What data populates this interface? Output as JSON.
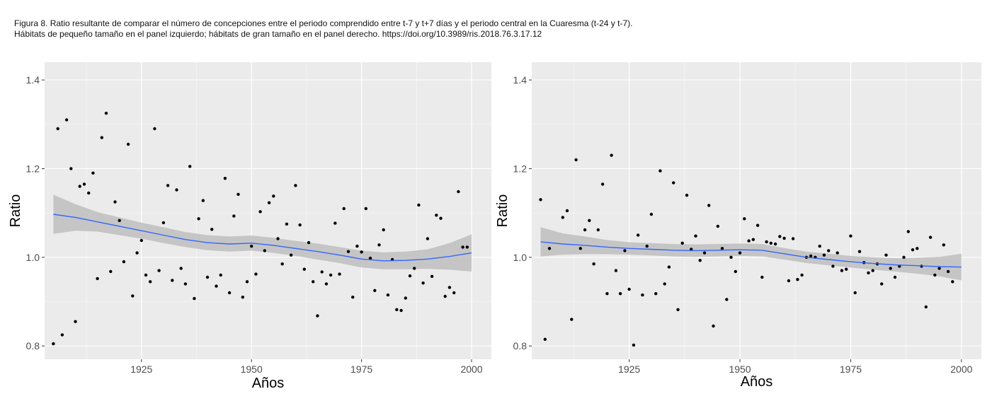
{
  "caption": {
    "line1": "Figura 8. Ratio resultante de comparar el número de concepciones entre el periodo comprendido entre t-7 y t+7 días y el periodo central en la Cuaresma (t-24 y t-7).",
    "line2": "Hábitats de pequeño tamaño en el panel izquierdo; hábitats de gran tamaño en el panel derecho. https://doi.org/10.3989/ris.2018.76.3.17.12"
  },
  "colors": {
    "panel_bg": "#ebebeb",
    "grid": "#ffffff",
    "points": "#000000",
    "smooth_line": "#3366ff",
    "confidence_band": "#bebebe"
  },
  "chart_data": [
    {
      "type": "scatter",
      "panel": "left",
      "title": "",
      "xlabel": "Años",
      "ylabel": "Ratio",
      "xlim": [
        1903,
        2004.5
      ],
      "ylim": [
        0.77,
        1.44
      ],
      "xticks": [
        1925,
        1950,
        1975,
        2000
      ],
      "yticks": [
        0.8,
        1.0,
        1.2,
        1.4
      ],
      "xtick_labels": [
        "1925",
        "1950",
        "1975",
        "2000"
      ],
      "ytick_labels": [
        "0.8",
        "1.0",
        "1.2",
        "1.4"
      ],
      "grid": true,
      "points": [
        [
          1905,
          0.805
        ],
        [
          1906,
          1.29
        ],
        [
          1907,
          0.825
        ],
        [
          1908,
          1.31
        ],
        [
          1909,
          1.2
        ],
        [
          1910,
          0.855
        ],
        [
          1911,
          1.16
        ],
        [
          1912,
          1.165
        ],
        [
          1913,
          1.145
        ],
        [
          1914,
          1.19
        ],
        [
          1915,
          0.952
        ],
        [
          1916,
          1.27
        ],
        [
          1917,
          1.325
        ],
        [
          1918,
          0.968
        ],
        [
          1919,
          1.125
        ],
        [
          1920,
          1.083
        ],
        [
          1921,
          0.99
        ],
        [
          1922,
          1.255
        ],
        [
          1923,
          0.913
        ],
        [
          1924,
          1.01
        ],
        [
          1925,
          1.038
        ],
        [
          1926,
          0.96
        ],
        [
          1927,
          0.945
        ],
        [
          1928,
          1.29
        ],
        [
          1929,
          0.97
        ],
        [
          1930,
          1.078
        ],
        [
          1931,
          1.162
        ],
        [
          1932,
          0.948
        ],
        [
          1933,
          1.152
        ],
        [
          1934,
          0.975
        ],
        [
          1935,
          0.94
        ],
        [
          1936,
          1.205
        ],
        [
          1937,
          0.907
        ],
        [
          1938,
          1.087
        ],
        [
          1939,
          1.128
        ],
        [
          1940,
          0.955
        ],
        [
          1941,
          1.063
        ],
        [
          1942,
          0.935
        ],
        [
          1943,
          0.96
        ],
        [
          1944,
          1.178
        ],
        [
          1945,
          0.92
        ],
        [
          1946,
          1.093
        ],
        [
          1947,
          1.142
        ],
        [
          1948,
          0.91
        ],
        [
          1949,
          0.945
        ],
        [
          1950,
          1.025
        ],
        [
          1951,
          0.962
        ],
        [
          1952,
          1.103
        ],
        [
          1953,
          1.015
        ],
        [
          1954,
          1.123
        ],
        [
          1955,
          1.138
        ],
        [
          1956,
          1.042
        ],
        [
          1957,
          0.985
        ],
        [
          1958,
          1.075
        ],
        [
          1959,
          1.005
        ],
        [
          1960,
          1.162
        ],
        [
          1961,
          1.073
        ],
        [
          1962,
          0.973
        ],
        [
          1963,
          1.033
        ],
        [
          1964,
          0.945
        ],
        [
          1965,
          0.868
        ],
        [
          1966,
          0.967
        ],
        [
          1967,
          0.94
        ],
        [
          1968,
          0.96
        ],
        [
          1969,
          1.077
        ],
        [
          1970,
          0.962
        ],
        [
          1971,
          1.11
        ],
        [
          1972,
          1.013
        ],
        [
          1973,
          0.91
        ],
        [
          1974,
          1.025
        ],
        [
          1975,
          1.012
        ],
        [
          1976,
          1.11
        ],
        [
          1977,
          0.998
        ],
        [
          1978,
          0.925
        ],
        [
          1979,
          1.028
        ],
        [
          1980,
          1.062
        ],
        [
          1981,
          0.915
        ],
        [
          1982,
          0.995
        ],
        [
          1983,
          0.882
        ],
        [
          1984,
          0.88
        ],
        [
          1985,
          0.908
        ],
        [
          1986,
          0.958
        ],
        [
          1987,
          0.975
        ],
        [
          1988,
          1.118
        ],
        [
          1989,
          0.942
        ],
        [
          1990,
          1.042
        ],
        [
          1991,
          0.957
        ],
        [
          1992,
          1.095
        ],
        [
          1993,
          1.088
        ],
        [
          1994,
          0.912
        ],
        [
          1995,
          0.932
        ],
        [
          1996,
          0.92
        ],
        [
          1997,
          1.148
        ],
        [
          1998,
          1.023
        ],
        [
          1999,
          1.023
        ]
      ],
      "smooth": {
        "x": [
          1905,
          1910,
          1915,
          1920,
          1925,
          1930,
          1935,
          1940,
          1945,
          1950,
          1955,
          1960,
          1965,
          1970,
          1975,
          1980,
          1985,
          1990,
          1995,
          2000
        ],
        "y": [
          1.097,
          1.09,
          1.08,
          1.07,
          1.06,
          1.05,
          1.04,
          1.033,
          1.03,
          1.032,
          1.027,
          1.02,
          1.013,
          1.005,
          0.996,
          0.992,
          0.993,
          0.996,
          1.002,
          1.01
        ],
        "lower": [
          1.053,
          1.06,
          1.058,
          1.05,
          1.042,
          1.032,
          1.023,
          1.016,
          1.013,
          1.015,
          1.01,
          1.003,
          0.995,
          0.987,
          0.977,
          0.973,
          0.973,
          0.974,
          0.972,
          0.968
        ],
        "upper": [
          1.141,
          1.12,
          1.102,
          1.09,
          1.078,
          1.068,
          1.057,
          1.05,
          1.047,
          1.049,
          1.044,
          1.037,
          1.031,
          1.023,
          1.015,
          1.011,
          1.013,
          1.018,
          1.032,
          1.052
        ]
      }
    },
    {
      "type": "scatter",
      "panel": "right",
      "title": "",
      "xlabel": "Años",
      "ylabel": "Ratio",
      "xlim": [
        1903,
        2004.5
      ],
      "ylim": [
        0.77,
        1.44
      ],
      "xticks": [
        1925,
        1950,
        1975,
        2000
      ],
      "yticks": [
        0.8,
        1.0,
        1.2,
        1.4
      ],
      "xtick_labels": [
        "1925",
        "1950",
        "1975",
        "2000"
      ],
      "ytick_labels": [
        "0.8",
        "1.0",
        "1.2",
        "1.4"
      ],
      "grid": true,
      "points": [
        [
          1905,
          1.13
        ],
        [
          1906,
          0.815
        ],
        [
          1907,
          1.02
        ],
        [
          1910,
          1.09
        ],
        [
          1911,
          1.105
        ],
        [
          1912,
          0.86
        ],
        [
          1913,
          1.22
        ],
        [
          1914,
          1.02
        ],
        [
          1915,
          1.062
        ],
        [
          1916,
          1.083
        ],
        [
          1917,
          0.985
        ],
        [
          1918,
          1.062
        ],
        [
          1919,
          1.165
        ],
        [
          1920,
          0.918
        ],
        [
          1921,
          1.23
        ],
        [
          1922,
          0.97
        ],
        [
          1923,
          0.918
        ],
        [
          1924,
          1.015
        ],
        [
          1925,
          0.928
        ],
        [
          1926,
          0.802
        ],
        [
          1927,
          1.05
        ],
        [
          1928,
          0.915
        ],
        [
          1929,
          1.025
        ],
        [
          1930,
          1.097
        ],
        [
          1931,
          0.918
        ],
        [
          1932,
          1.195
        ],
        [
          1933,
          0.94
        ],
        [
          1934,
          0.978
        ],
        [
          1935,
          1.168
        ],
        [
          1936,
          0.882
        ],
        [
          1937,
          1.032
        ],
        [
          1938,
          1.14
        ],
        [
          1939,
          1.018
        ],
        [
          1940,
          1.048
        ],
        [
          1941,
          0.993
        ],
        [
          1942,
          1.01
        ],
        [
          1943,
          1.117
        ],
        [
          1944,
          0.845
        ],
        [
          1945,
          1.07
        ],
        [
          1946,
          1.02
        ],
        [
          1947,
          0.905
        ],
        [
          1948,
          1.0
        ],
        [
          1949,
          0.968
        ],
        [
          1950,
          1.01
        ],
        [
          1951,
          1.087
        ],
        [
          1952,
          1.037
        ],
        [
          1953,
          1.04
        ],
        [
          1954,
          1.072
        ],
        [
          1955,
          0.955
        ],
        [
          1956,
          1.035
        ],
        [
          1957,
          1.032
        ],
        [
          1958,
          1.03
        ],
        [
          1959,
          1.047
        ],
        [
          1960,
          1.043
        ],
        [
          1961,
          0.947
        ],
        [
          1962,
          1.042
        ],
        [
          1963,
          0.95
        ],
        [
          1964,
          0.96
        ],
        [
          1965,
          1.0
        ],
        [
          1966,
          1.003
        ],
        [
          1967,
          1.0
        ],
        [
          1968,
          1.025
        ],
        [
          1969,
          1.005
        ],
        [
          1970,
          1.015
        ],
        [
          1971,
          0.98
        ],
        [
          1972,
          1.01
        ],
        [
          1973,
          0.97
        ],
        [
          1974,
          0.973
        ],
        [
          1975,
          1.048
        ],
        [
          1976,
          0.92
        ],
        [
          1977,
          1.013
        ],
        [
          1978,
          0.988
        ],
        [
          1979,
          0.965
        ],
        [
          1980,
          0.97
        ],
        [
          1981,
          0.985
        ],
        [
          1982,
          0.94
        ],
        [
          1983,
          1.005
        ],
        [
          1984,
          0.975
        ],
        [
          1985,
          0.955
        ],
        [
          1986,
          0.98
        ],
        [
          1987,
          1.0
        ],
        [
          1988,
          1.058
        ],
        [
          1989,
          1.017
        ],
        [
          1990,
          1.02
        ],
        [
          1991,
          0.98
        ],
        [
          1992,
          0.888
        ],
        [
          1993,
          1.045
        ],
        [
          1994,
          0.96
        ],
        [
          1995,
          0.975
        ],
        [
          1996,
          1.028
        ],
        [
          1997,
          0.968
        ],
        [
          1998,
          0.945
        ]
      ],
      "smooth": {
        "x": [
          1905,
          1910,
          1915,
          1920,
          1925,
          1930,
          1935,
          1940,
          1945,
          1950,
          1955,
          1960,
          1965,
          1970,
          1975,
          1980,
          1985,
          1990,
          1995,
          2000
        ],
        "y": [
          1.035,
          1.03,
          1.027,
          1.023,
          1.02,
          1.018,
          1.016,
          1.015,
          1.016,
          1.017,
          1.016,
          1.008,
          1.0,
          0.995,
          0.99,
          0.986,
          0.983,
          0.981,
          0.979,
          0.978
        ],
        "lower": [
          1.002,
          1.006,
          1.007,
          1.007,
          1.006,
          1.004,
          1.002,
          1.001,
          1.002,
          1.003,
          1.002,
          0.995,
          0.987,
          0.982,
          0.977,
          0.972,
          0.968,
          0.963,
          0.957,
          0.948
        ],
        "upper": [
          1.068,
          1.054,
          1.047,
          1.039,
          1.034,
          1.032,
          1.03,
          1.029,
          1.03,
          1.031,
          1.03,
          1.021,
          1.013,
          1.008,
          1.003,
          1.0,
          0.998,
          0.999,
          1.001,
          1.008
        ]
      }
    }
  ]
}
